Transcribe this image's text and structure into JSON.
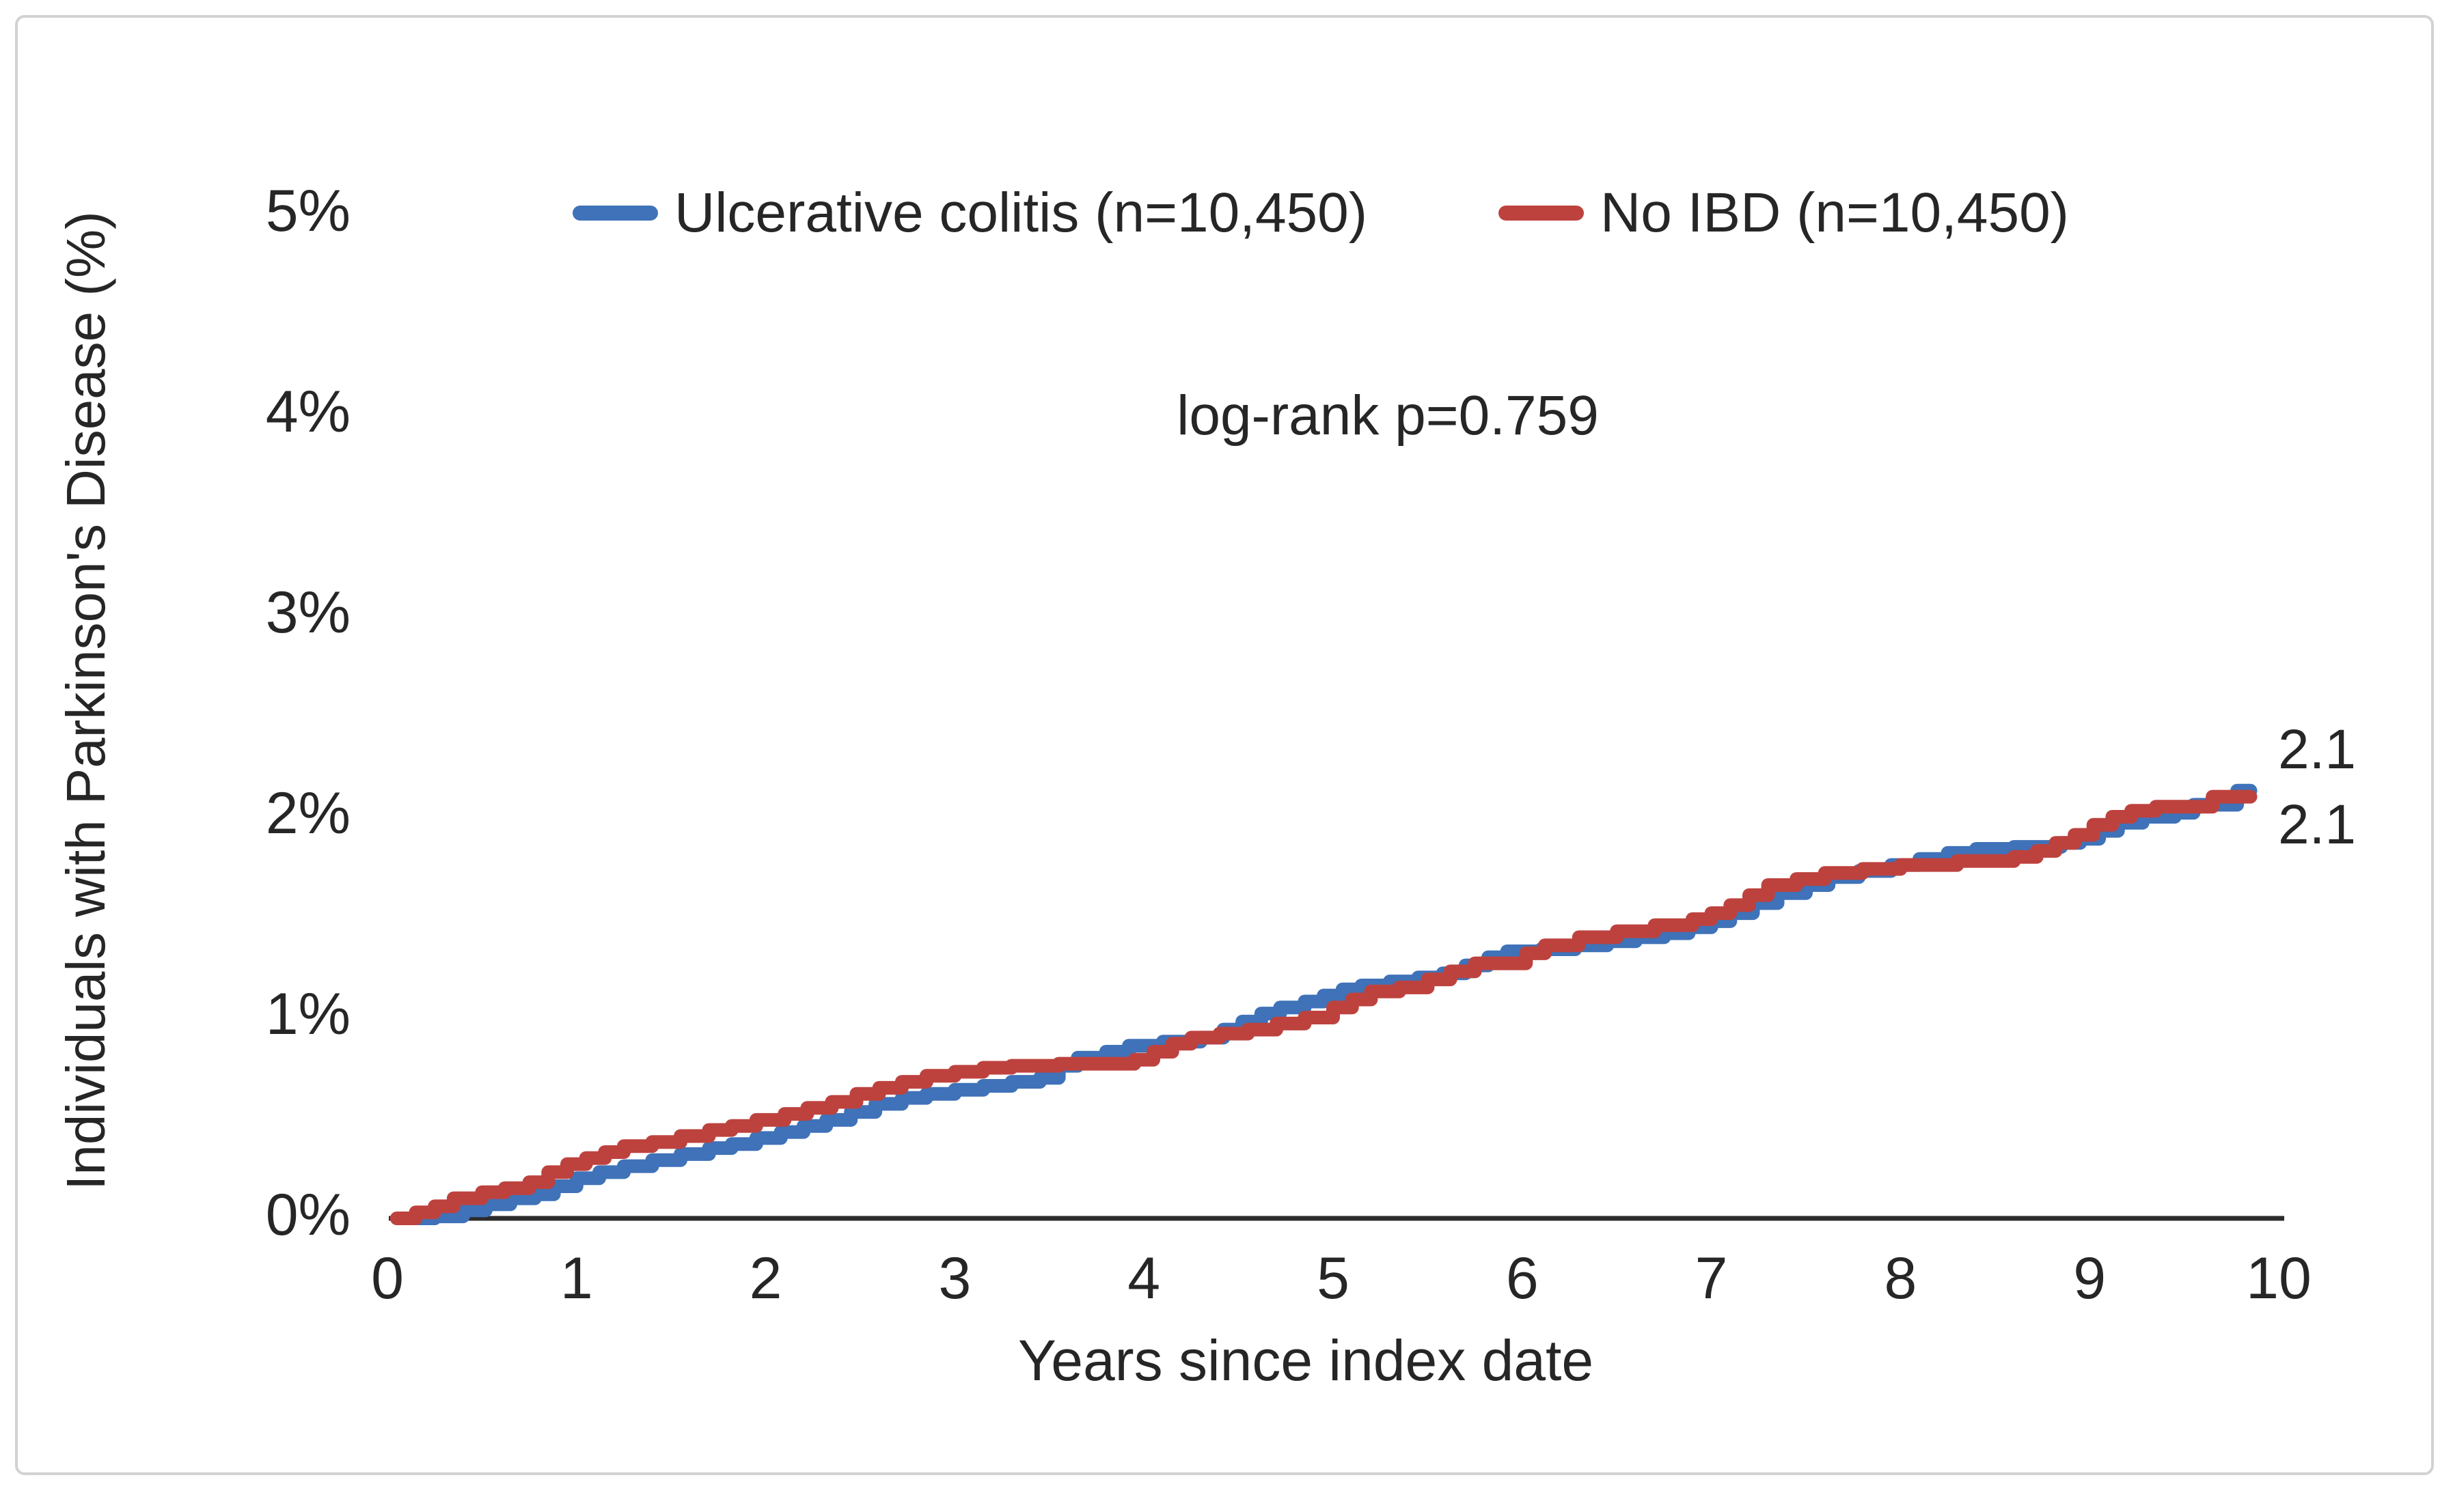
{
  "chart_data": {
    "type": "line",
    "subtype": "step-post-cumulative-incidence",
    "title": "",
    "xlabel": "Years since index date",
    "ylabel": "Individuals with Parkinson's Disease (%)",
    "annotation": "log-rank p=0.759",
    "xlim": [
      0,
      10
    ],
    "ylim": [
      0,
      5
    ],
    "x_ticks": [
      0,
      1,
      2,
      3,
      4,
      5,
      6,
      7,
      8,
      9,
      10
    ],
    "y_tick_labels": [
      "0%",
      "1%",
      "2%",
      "3%",
      "4%",
      "5%"
    ],
    "y_tick_values": [
      0,
      1,
      2,
      3,
      4,
      5
    ],
    "grid": false,
    "legend_position": "top",
    "axis_color": "#2b2b2b",
    "series": [
      {
        "name": "Ulcerative colitis (n=10,450)",
        "color": "#3f72b8",
        "end_label": "2.1",
        "final_value_pct": 2.1,
        "points": [
          [
            0.1,
            0.0
          ],
          [
            0.25,
            0.01
          ],
          [
            0.4,
            0.04
          ],
          [
            0.52,
            0.07
          ],
          [
            0.65,
            0.1
          ],
          [
            0.78,
            0.12
          ],
          [
            0.88,
            0.16
          ],
          [
            1.0,
            0.2
          ],
          [
            1.12,
            0.23
          ],
          [
            1.25,
            0.26
          ],
          [
            1.4,
            0.29
          ],
          [
            1.55,
            0.32
          ],
          [
            1.7,
            0.35
          ],
          [
            1.82,
            0.37
          ],
          [
            1.95,
            0.4
          ],
          [
            2.08,
            0.43
          ],
          [
            2.2,
            0.46
          ],
          [
            2.32,
            0.49
          ],
          [
            2.45,
            0.53
          ],
          [
            2.58,
            0.57
          ],
          [
            2.72,
            0.6
          ],
          [
            2.85,
            0.62
          ],
          [
            3.0,
            0.64
          ],
          [
            3.15,
            0.66
          ],
          [
            3.3,
            0.68
          ],
          [
            3.45,
            0.7
          ],
          [
            3.55,
            0.76
          ],
          [
            3.65,
            0.8
          ],
          [
            3.8,
            0.83
          ],
          [
            3.92,
            0.86
          ],
          [
            4.1,
            0.88
          ],
          [
            4.3,
            0.9
          ],
          [
            4.42,
            0.94
          ],
          [
            4.52,
            0.98
          ],
          [
            4.62,
            1.02
          ],
          [
            4.72,
            1.05
          ],
          [
            4.85,
            1.08
          ],
          [
            4.95,
            1.11
          ],
          [
            5.05,
            1.14
          ],
          [
            5.15,
            1.16
          ],
          [
            5.3,
            1.18
          ],
          [
            5.45,
            1.2
          ],
          [
            5.58,
            1.22
          ],
          [
            5.7,
            1.26
          ],
          [
            5.82,
            1.3
          ],
          [
            5.92,
            1.33
          ],
          [
            6.1,
            1.34
          ],
          [
            6.28,
            1.36
          ],
          [
            6.45,
            1.38
          ],
          [
            6.6,
            1.4
          ],
          [
            6.75,
            1.42
          ],
          [
            6.88,
            1.45
          ],
          [
            7.0,
            1.48
          ],
          [
            7.1,
            1.52
          ],
          [
            7.22,
            1.57
          ],
          [
            7.35,
            1.62
          ],
          [
            7.5,
            1.66
          ],
          [
            7.62,
            1.7
          ],
          [
            7.78,
            1.73
          ],
          [
            7.95,
            1.76
          ],
          [
            8.1,
            1.79
          ],
          [
            8.25,
            1.82
          ],
          [
            8.4,
            1.84
          ],
          [
            8.6,
            1.85
          ],
          [
            8.85,
            1.87
          ],
          [
            8.95,
            1.89
          ],
          [
            9.05,
            1.93
          ],
          [
            9.15,
            1.97
          ],
          [
            9.28,
            2.0
          ],
          [
            9.45,
            2.02
          ],
          [
            9.55,
            2.06
          ],
          [
            9.78,
            2.13
          ],
          [
            9.85,
            2.13
          ]
        ]
      },
      {
        "name": "No IBD (n=10,450)",
        "color": "#bd423e",
        "end_label": "2.1",
        "final_value_pct": 2.1,
        "points": [
          [
            0.05,
            0.0
          ],
          [
            0.15,
            0.03
          ],
          [
            0.25,
            0.06
          ],
          [
            0.35,
            0.1
          ],
          [
            0.5,
            0.13
          ],
          [
            0.62,
            0.15
          ],
          [
            0.75,
            0.18
          ],
          [
            0.85,
            0.23
          ],
          [
            0.95,
            0.27
          ],
          [
            1.05,
            0.3
          ],
          [
            1.15,
            0.33
          ],
          [
            1.25,
            0.36
          ],
          [
            1.4,
            0.38
          ],
          [
            1.55,
            0.41
          ],
          [
            1.7,
            0.44
          ],
          [
            1.82,
            0.46
          ],
          [
            1.95,
            0.49
          ],
          [
            2.1,
            0.52
          ],
          [
            2.22,
            0.55
          ],
          [
            2.35,
            0.58
          ],
          [
            2.48,
            0.62
          ],
          [
            2.6,
            0.65
          ],
          [
            2.72,
            0.68
          ],
          [
            2.85,
            0.71
          ],
          [
            3.0,
            0.73
          ],
          [
            3.15,
            0.75
          ],
          [
            3.3,
            0.76
          ],
          [
            3.55,
            0.77
          ],
          [
            3.95,
            0.79
          ],
          [
            4.05,
            0.83
          ],
          [
            4.15,
            0.87
          ],
          [
            4.25,
            0.9
          ],
          [
            4.4,
            0.92
          ],
          [
            4.55,
            0.94
          ],
          [
            4.7,
            0.97
          ],
          [
            4.85,
            1.0
          ],
          [
            5.0,
            1.05
          ],
          [
            5.1,
            1.09
          ],
          [
            5.2,
            1.13
          ],
          [
            5.35,
            1.15
          ],
          [
            5.5,
            1.19
          ],
          [
            5.62,
            1.23
          ],
          [
            5.75,
            1.27
          ],
          [
            6.02,
            1.32
          ],
          [
            6.12,
            1.36
          ],
          [
            6.3,
            1.4
          ],
          [
            6.5,
            1.43
          ],
          [
            6.7,
            1.46
          ],
          [
            6.9,
            1.49
          ],
          [
            7.0,
            1.52
          ],
          [
            7.1,
            1.56
          ],
          [
            7.2,
            1.61
          ],
          [
            7.3,
            1.66
          ],
          [
            7.45,
            1.69
          ],
          [
            7.6,
            1.72
          ],
          [
            7.8,
            1.74
          ],
          [
            8.0,
            1.76
          ],
          [
            8.3,
            1.78
          ],
          [
            8.6,
            1.8
          ],
          [
            8.72,
            1.83
          ],
          [
            8.82,
            1.87
          ],
          [
            8.92,
            1.91
          ],
          [
            9.02,
            1.96
          ],
          [
            9.12,
            2.0
          ],
          [
            9.22,
            2.03
          ],
          [
            9.35,
            2.05
          ],
          [
            9.65,
            2.1
          ],
          [
            9.85,
            2.1
          ]
        ]
      }
    ]
  }
}
